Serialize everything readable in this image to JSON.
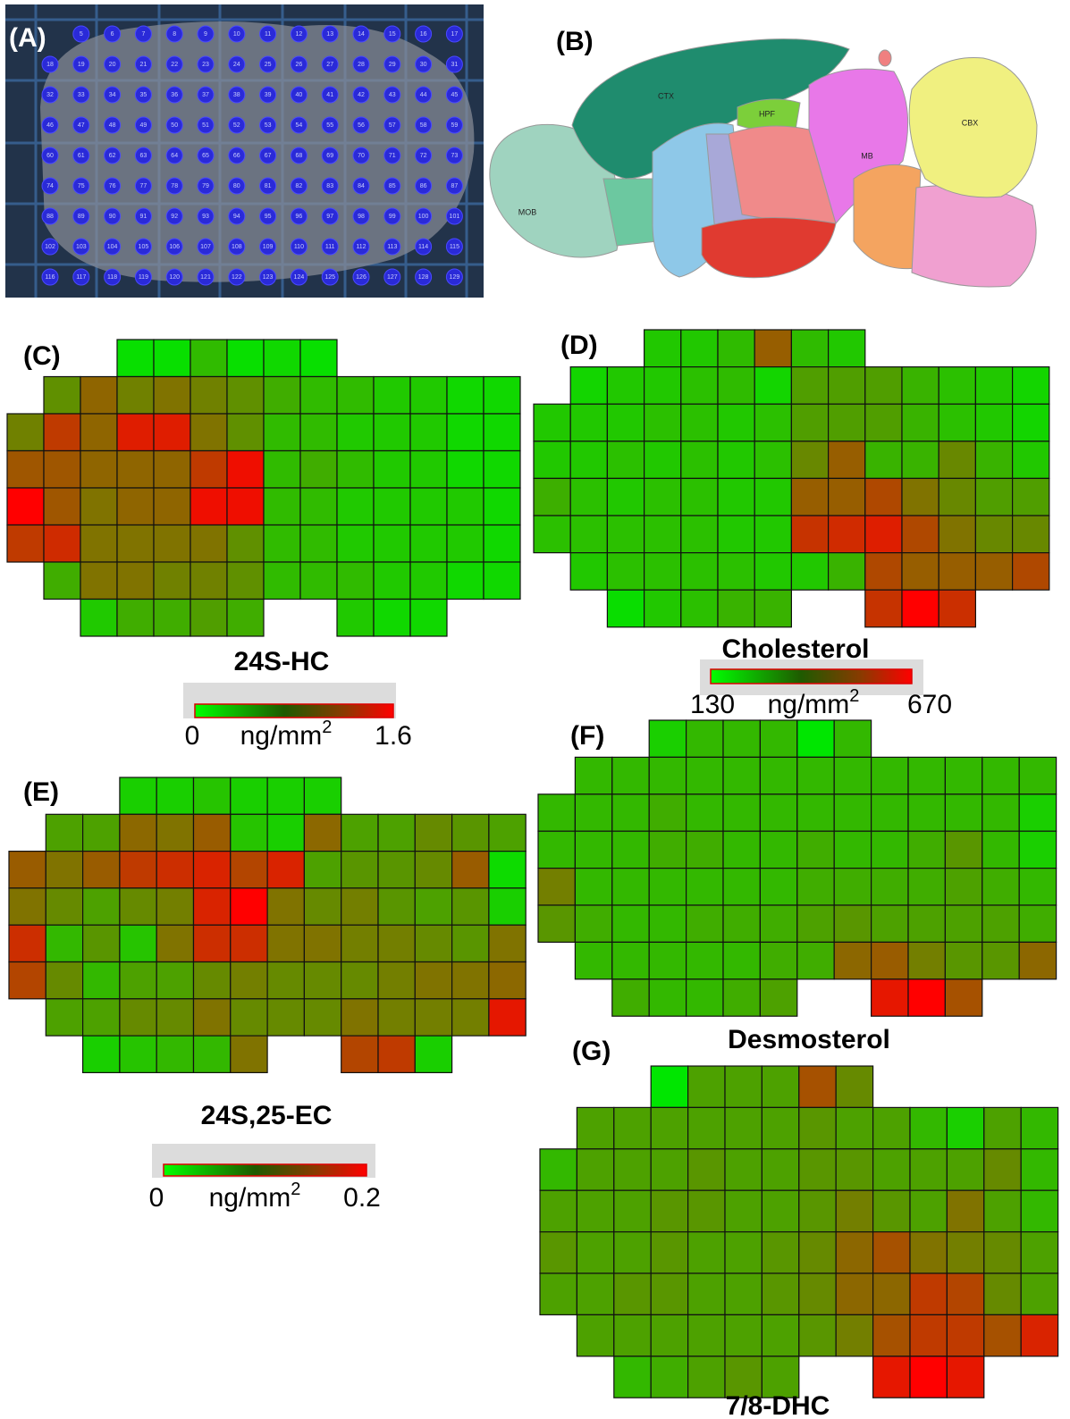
{
  "panels": [
    {
      "label": "(A)",
      "spots": [
        [
          5,
          6,
          7,
          8,
          9,
          10,
          11,
          12,
          13,
          14,
          15,
          16,
          17
        ],
        [
          18,
          19,
          20,
          21,
          22,
          23,
          24,
          25,
          26,
          27,
          28,
          29,
          30,
          31
        ],
        [
          32,
          33,
          34,
          35,
          36,
          37,
          38,
          39,
          40,
          41,
          42,
          43,
          44,
          45
        ],
        [
          46,
          47,
          48,
          49,
          50,
          51,
          52,
          53,
          54,
          55,
          56,
          57,
          58,
          59
        ],
        [
          60,
          61,
          62,
          63,
          64,
          65,
          66,
          67,
          68,
          69,
          70,
          71,
          72,
          73
        ],
        [
          74,
          75,
          76,
          77,
          78,
          79,
          80,
          81,
          82,
          83,
          84,
          85,
          86,
          87
        ],
        [
          88,
          89,
          90,
          91,
          92,
          93,
          94,
          95,
          96,
          97,
          98,
          99,
          100,
          101
        ],
        [
          102,
          103,
          104,
          105,
          106,
          107,
          108,
          109,
          110,
          111,
          112,
          113,
          114,
          115
        ],
        [
          116,
          117,
          118,
          119,
          120,
          121,
          122,
          123,
          124,
          125,
          126,
          127,
          128,
          129
        ]
      ]
    },
    {
      "label": "(B)",
      "regions": [
        "MOB",
        "CTX",
        "HPF",
        "MB",
        "CBX"
      ]
    },
    {
      "label": "(C)",
      "title": "24S-HC",
      "colorbar": {
        "min": 0,
        "max": 1.6,
        "unit": "ng/mm",
        "unit_exp": "2"
      },
      "cells": [
        [
          null,
          null,
          null,
          0.05,
          0.05,
          0.3,
          0.05,
          0.1,
          0.05,
          null,
          null,
          null,
          null,
          null
        ],
        [
          null,
          0.6,
          0.9,
          0.7,
          0.8,
          0.7,
          0.6,
          0.4,
          0.3,
          0.3,
          0.2,
          0.2,
          0.1,
          0.1
        ],
        [
          0.7,
          1.2,
          0.9,
          1.4,
          1.4,
          0.8,
          0.6,
          0.3,
          0.3,
          0.2,
          0.2,
          0.2,
          0.1,
          0.1
        ],
        [
          1.0,
          1.0,
          0.9,
          0.9,
          0.9,
          1.2,
          1.5,
          0.3,
          0.4,
          0.3,
          0.2,
          0.2,
          0.1,
          0.1
        ],
        [
          1.6,
          1.0,
          0.8,
          0.9,
          0.9,
          1.5,
          1.5,
          0.3,
          0.3,
          0.2,
          0.2,
          0.2,
          0.2,
          0.1
        ],
        [
          1.2,
          1.3,
          0.8,
          0.8,
          0.8,
          0.8,
          0.6,
          0.3,
          0.3,
          0.2,
          0.2,
          0.2,
          0.2,
          0.1
        ],
        [
          null,
          0.4,
          0.8,
          0.8,
          0.7,
          0.7,
          0.6,
          0.3,
          0.3,
          0.3,
          0.2,
          0.2,
          0.1,
          0.1
        ],
        [
          null,
          null,
          0.2,
          0.4,
          0.4,
          0.5,
          0.4,
          null,
          null,
          0.2,
          0.1,
          0.1,
          null,
          null
        ]
      ]
    },
    {
      "label": "(D)",
      "title": "Cholesterol",
      "colorbar": {
        "min": 130,
        "max": 670,
        "unit": "ng/mm",
        "unit_exp": "2"
      },
      "cells": [
        [
          null,
          null,
          null,
          200,
          200,
          230,
          450,
          230,
          200,
          null,
          null,
          null,
          null,
          null
        ],
        [
          null,
          170,
          200,
          200,
          220,
          230,
          170,
          300,
          300,
          300,
          250,
          220,
          200,
          170
        ],
        [
          200,
          200,
          200,
          220,
          220,
          200,
          220,
          300,
          300,
          300,
          250,
          220,
          200,
          170
        ],
        [
          200,
          200,
          220,
          200,
          220,
          200,
          220,
          350,
          450,
          250,
          250,
          350,
          250,
          200
        ],
        [
          260,
          220,
          200,
          220,
          220,
          200,
          200,
          450,
          450,
          500,
          400,
          350,
          300,
          300
        ],
        [
          220,
          220,
          220,
          220,
          220,
          200,
          200,
          550,
          570,
          600,
          500,
          400,
          350,
          350
        ],
        [
          null,
          200,
          220,
          220,
          220,
          220,
          200,
          200,
          250,
          500,
          450,
          450,
          450,
          500
        ],
        [
          null,
          null,
          150,
          200,
          220,
          250,
          250,
          null,
          null,
          550,
          670,
          560,
          null,
          null
        ]
      ]
    },
    {
      "label": "(E)",
      "title": "24S,25-EC",
      "colorbar": {
        "min": 0,
        "max": 0.2,
        "unit": "ng/mm",
        "unit_exp": "2"
      },
      "cells": [
        [
          null,
          null,
          null,
          0.02,
          0.02,
          0.03,
          0.02,
          0.02,
          0.02,
          null,
          null,
          null,
          null,
          null
        ],
        [
          null,
          0.06,
          0.06,
          0.11,
          0.1,
          0.12,
          0.03,
          0.02,
          0.11,
          0.06,
          0.06,
          0.08,
          0.07,
          0.06
        ],
        [
          0.12,
          0.1,
          0.12,
          0.15,
          0.16,
          0.17,
          0.14,
          0.17,
          0.06,
          0.07,
          0.07,
          0.08,
          0.12,
          0.01
        ],
        [
          0.1,
          0.08,
          0.06,
          0.08,
          0.09,
          0.17,
          0.2,
          0.1,
          0.08,
          0.09,
          0.07,
          0.06,
          0.07,
          0.02
        ],
        [
          0.16,
          0.04,
          0.07,
          0.03,
          0.1,
          0.16,
          0.16,
          0.1,
          0.1,
          0.09,
          0.09,
          0.08,
          0.07,
          0.1
        ],
        [
          0.14,
          0.08,
          0.04,
          0.06,
          0.06,
          0.08,
          0.09,
          0.08,
          0.08,
          0.08,
          0.09,
          0.1,
          0.1,
          0.11
        ],
        [
          null,
          0.06,
          0.06,
          0.08,
          0.08,
          0.1,
          0.08,
          0.08,
          0.08,
          0.1,
          0.09,
          0.09,
          0.09,
          0.18
        ],
        [
          null,
          null,
          0.02,
          0.03,
          0.04,
          0.04,
          0.1,
          null,
          null,
          0.14,
          0.15,
          0.02,
          null,
          null
        ]
      ]
    },
    {
      "label": "(F)",
      "title": "Desmosterol",
      "cells": [
        [
          null,
          null,
          null,
          0.1,
          0.2,
          0.2,
          0.2,
          0.0,
          0.2,
          null,
          null,
          null,
          null,
          null
        ],
        [
          null,
          0.2,
          0.2,
          0.2,
          0.2,
          0.2,
          0.2,
          0.2,
          0.2,
          0.2,
          0.2,
          0.2,
          0.2,
          0.2
        ],
        [
          0.2,
          0.2,
          0.2,
          0.25,
          0.2,
          0.2,
          0.2,
          0.2,
          0.2,
          0.2,
          0.2,
          0.2,
          0.2,
          0.1
        ],
        [
          0.2,
          0.2,
          0.2,
          0.25,
          0.25,
          0.2,
          0.2,
          0.25,
          0.2,
          0.2,
          0.25,
          0.35,
          0.2,
          0.1
        ],
        [
          0.45,
          0.2,
          0.2,
          0.2,
          0.2,
          0.2,
          0.2,
          0.25,
          0.25,
          0.25,
          0.25,
          0.3,
          0.25,
          0.2
        ],
        [
          0.35,
          0.25,
          0.2,
          0.2,
          0.25,
          0.25,
          0.25,
          0.3,
          0.35,
          0.3,
          0.3,
          0.3,
          0.3,
          0.25
        ],
        [
          null,
          0.2,
          0.2,
          0.2,
          0.2,
          0.2,
          0.25,
          0.25,
          0.55,
          0.6,
          0.45,
          0.35,
          0.35,
          0.55
        ],
        [
          null,
          null,
          0.25,
          0.2,
          0.2,
          0.25,
          0.3,
          null,
          null,
          0.9,
          1.0,
          0.65,
          null,
          null
        ]
      ]
    },
    {
      "label": "(G)",
      "title": "7/8-DHC",
      "cells": [
        [
          null,
          null,
          null,
          0.0,
          0.3,
          0.3,
          0.3,
          0.65,
          0.4,
          null,
          null,
          null,
          null,
          null
        ],
        [
          null,
          0.3,
          0.3,
          0.3,
          0.3,
          0.3,
          0.3,
          0.35,
          0.3,
          0.3,
          0.2,
          0.1,
          0.3,
          0.2
        ],
        [
          0.2,
          0.3,
          0.3,
          0.3,
          0.35,
          0.3,
          0.3,
          0.35,
          0.35,
          0.3,
          0.3,
          0.3,
          0.4,
          0.2
        ],
        [
          0.3,
          0.3,
          0.3,
          0.35,
          0.35,
          0.3,
          0.3,
          0.35,
          0.45,
          0.35,
          0.3,
          0.5,
          0.3,
          0.2
        ],
        [
          0.35,
          0.3,
          0.3,
          0.35,
          0.3,
          0.3,
          0.35,
          0.4,
          0.55,
          0.65,
          0.5,
          0.45,
          0.4,
          0.3
        ],
        [
          0.3,
          0.3,
          0.35,
          0.35,
          0.3,
          0.3,
          0.35,
          0.4,
          0.55,
          0.55,
          0.75,
          0.7,
          0.4,
          0.3
        ],
        [
          null,
          0.3,
          0.3,
          0.3,
          0.3,
          0.3,
          0.3,
          0.35,
          0.45,
          0.65,
          0.75,
          0.75,
          0.65,
          0.85
        ],
        [
          null,
          null,
          0.2,
          0.25,
          0.3,
          0.35,
          0.3,
          null,
          null,
          0.9,
          1.0,
          0.9,
          null,
          null
        ]
      ]
    }
  ]
}
